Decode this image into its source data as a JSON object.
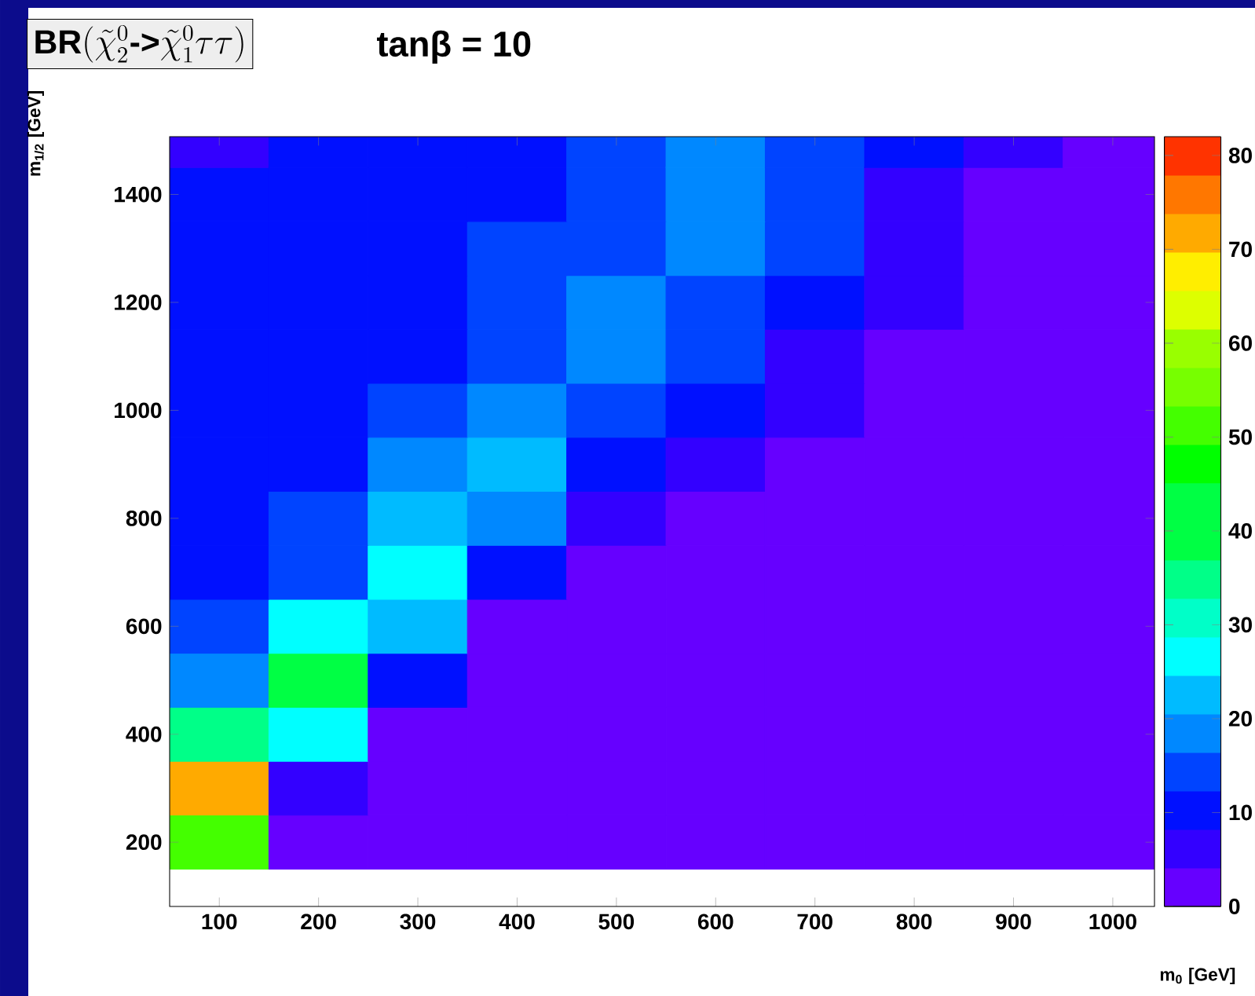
{
  "chart_data": {
    "type": "heatmap",
    "title": "\\textbf{BR}(\\tilde{\\chi}_{2}^{0}\\textbf{->}\\tilde{\\chi}_{1}^{0}\\tau\\tau)",
    "subtitle": "tanβ = 10",
    "xlabel": "m$_{0}$ [GeV]",
    "ylabel": "m$_{1/2}$ [GeV]",
    "categories": [
      "100",
      "200",
      "300",
      "400",
      "500",
      "600",
      "700",
      "800",
      "900",
      "1000"
    ],
    "y_categories": [
      null,
      "1400",
      null,
      "1200",
      null,
      "1000",
      null,
      "800",
      null,
      "600",
      null,
      "400",
      null,
      "200"
    ],
    "cells": [
      [
        6,
        10,
        10,
        10,
        14,
        18,
        14,
        10,
        6,
        2
      ],
      [
        10,
        10,
        10,
        12,
        14,
        18,
        14,
        6,
        2,
        2
      ],
      [
        10,
        10,
        10,
        14,
        14,
        18,
        14,
        8,
        2,
        2
      ],
      [
        10,
        10,
        10,
        14,
        18,
        14,
        10,
        6,
        2,
        2
      ],
      [
        10,
        10,
        12,
        14,
        18,
        14,
        8,
        2,
        2,
        2
      ],
      [
        10,
        10,
        14,
        18,
        14,
        10,
        6,
        2,
        2,
        2
      ],
      [
        10,
        12,
        18,
        23,
        10,
        6,
        2,
        2,
        2,
        2
      ],
      [
        10,
        14,
        23,
        18,
        8,
        2,
        2,
        2,
        2,
        2
      ],
      [
        10,
        16,
        28,
        10,
        2,
        2,
        2,
        2,
        2,
        2
      ],
      [
        14,
        27,
        23,
        4,
        2,
        2,
        2,
        2,
        2,
        2
      ],
      [
        20,
        43,
        10,
        2,
        2,
        2,
        2,
        2,
        2,
        2
      ],
      [
        35,
        27,
        2,
        2,
        2,
        2,
        2,
        2,
        2,
        2
      ],
      [
        70,
        6,
        2,
        2,
        2,
        2,
        2,
        2,
        2,
        2
      ],
      [
        50,
        2,
        2,
        2,
        2,
        2,
        2,
        2,
        2,
        2
      ]
    ],
    "clim": [
      0,
      82
    ],
    "cticks": [
      0,
      10,
      20,
      30,
      40,
      50,
      60,
      70,
      80
    ]
  }
}
